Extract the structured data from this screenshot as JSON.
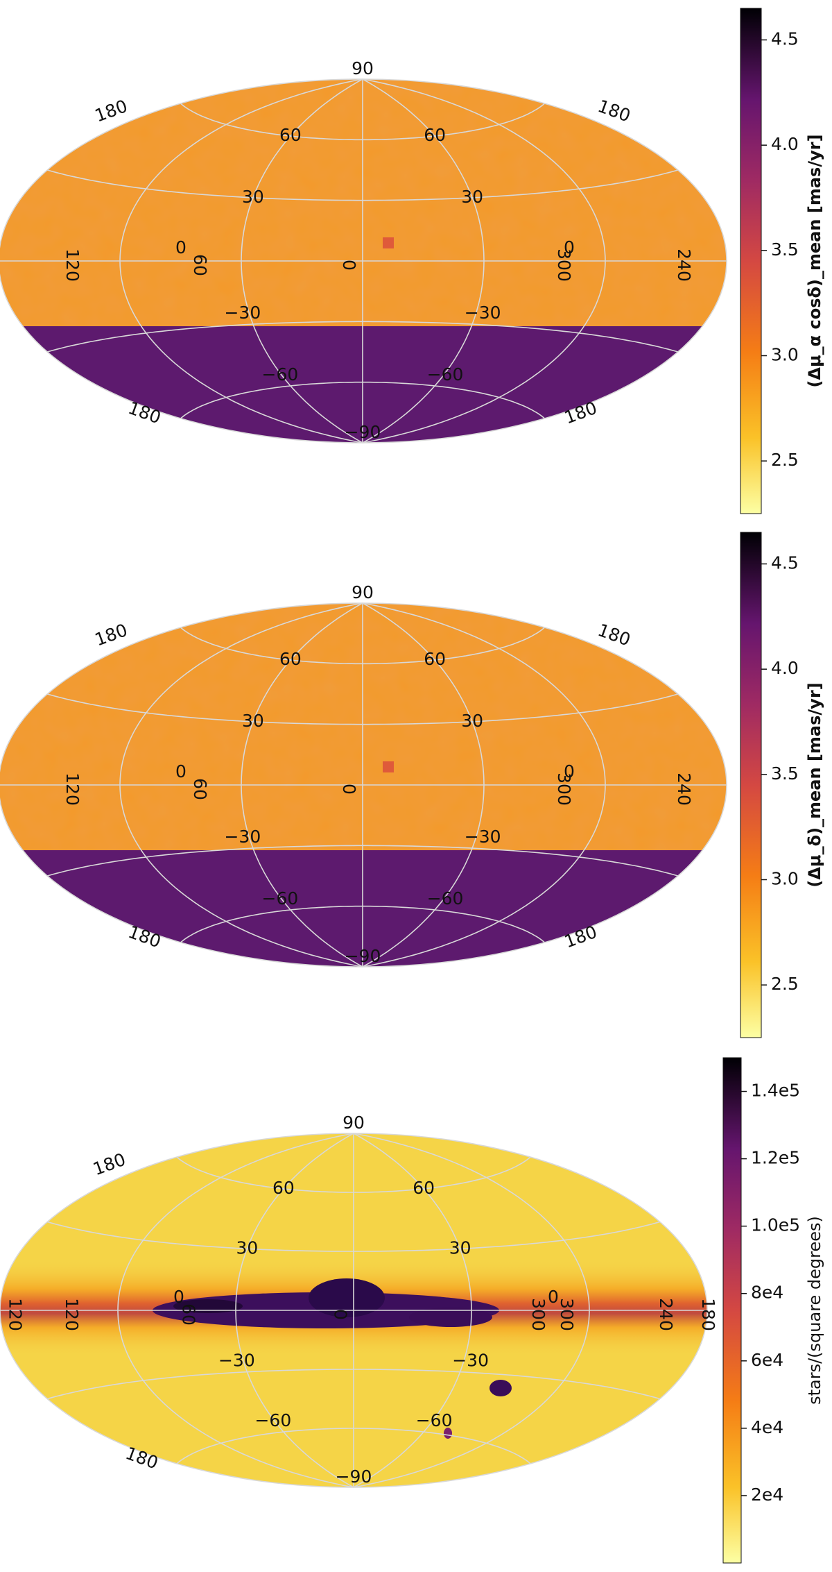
{
  "colors": {
    "colormap": "inferno_r",
    "grid": "#d8d8d8",
    "background": "#ffffff"
  },
  "chart_data": [
    {
      "type": "heatmap",
      "projection": "aitoff",
      "map": "sky map",
      "grid": true,
      "colorbar": {
        "label": "(Δμ_α cosδ)_mean [mas/yr]",
        "range": [
          2.25,
          4.65
        ],
        "ticks": [
          "2.5",
          "3.0",
          "3.5",
          "4.0",
          "4.5"
        ],
        "tick_values": [
          2.5,
          3.0,
          3.5,
          4.0,
          4.5
        ],
        "placement": "right"
      },
      "regions": [
        {
          "name": "north of dec -30",
          "value": 2.8
        },
        {
          "name": "south of dec -30",
          "value": 4.2
        }
      ],
      "lat_labels": {
        "top": "90",
        "bottom": "−90",
        "north60": [
          "60",
          "60"
        ],
        "north30": [
          "30",
          "30"
        ],
        "equator": [
          "0",
          "0"
        ],
        "south30": [
          "−30",
          "−30"
        ],
        "south60": [
          "−60",
          "−60"
        ]
      },
      "lon_labels": {
        "edge_north": [
          "180",
          "180"
        ],
        "edge_south": [
          "180",
          "180"
        ],
        "equator": [
          "120",
          "60",
          "0",
          "300",
          "240"
        ]
      }
    },
    {
      "type": "heatmap",
      "projection": "aitoff",
      "map": "sky map",
      "grid": true,
      "colorbar": {
        "label": "(Δμ_δ)_mean [mas/yr]",
        "range": [
          2.25,
          4.65
        ],
        "ticks": [
          "2.5",
          "3.0",
          "3.5",
          "4.0",
          "4.5"
        ],
        "tick_values": [
          2.5,
          3.0,
          3.5,
          4.0,
          4.5
        ],
        "placement": "right"
      },
      "regions": [
        {
          "name": "north of dec -30",
          "value": 2.8
        },
        {
          "name": "south of dec -30",
          "value": 4.2
        }
      ],
      "lat_labels": {
        "top": "90",
        "bottom": "−90",
        "north60": [
          "60",
          "60"
        ],
        "north30": [
          "30",
          "30"
        ],
        "equator": [
          "0",
          "0"
        ],
        "south30": [
          "−30",
          "−30"
        ],
        "south60": [
          "−60",
          "−60"
        ]
      },
      "lon_labels": {
        "edge_north": [
          "180",
          "180"
        ],
        "edge_south": [
          "180",
          "180"
        ],
        "equator": [
          "120",
          "60",
          "0",
          "300",
          "240"
        ]
      }
    },
    {
      "type": "heatmap",
      "projection": "aitoff",
      "map": "star density",
      "grid": true,
      "colorbar": {
        "label": "stars/(square degrees)",
        "range": [
          0,
          150000
        ],
        "ticks": [
          "2e4",
          "4e4",
          "6e4",
          "8e4",
          "1.0e5",
          "1.2e5",
          "1.4e5"
        ],
        "tick_values": [
          20000,
          40000,
          60000,
          80000,
          100000,
          120000,
          140000
        ],
        "placement": "right"
      },
      "regions": [
        {
          "name": "galactic plane band",
          "value": 60000
        },
        {
          "name": "bulge core",
          "value": 140000
        },
        {
          "name": "LMC",
          "value": 100000
        },
        {
          "name": "SMC",
          "value": 70000
        },
        {
          "name": "high latitude background",
          "value": 5000
        }
      ],
      "lat_labels": {
        "top": "90",
        "bottom": "−90",
        "north60": [
          "60",
          "60"
        ],
        "north30": [
          "30",
          "30"
        ],
        "equator": [
          "0",
          "0"
        ],
        "south30": [
          "−30",
          "−30"
        ],
        "south60": [
          "−60",
          "−60"
        ]
      },
      "lon_labels": {
        "edge_north": [
          "180",
          ""
        ],
        "edge_south": [
          "180",
          ""
        ],
        "equator": [
          "120",
          "120",
          "60",
          "0",
          "300",
          "300",
          "240",
          "180"
        ]
      }
    }
  ]
}
